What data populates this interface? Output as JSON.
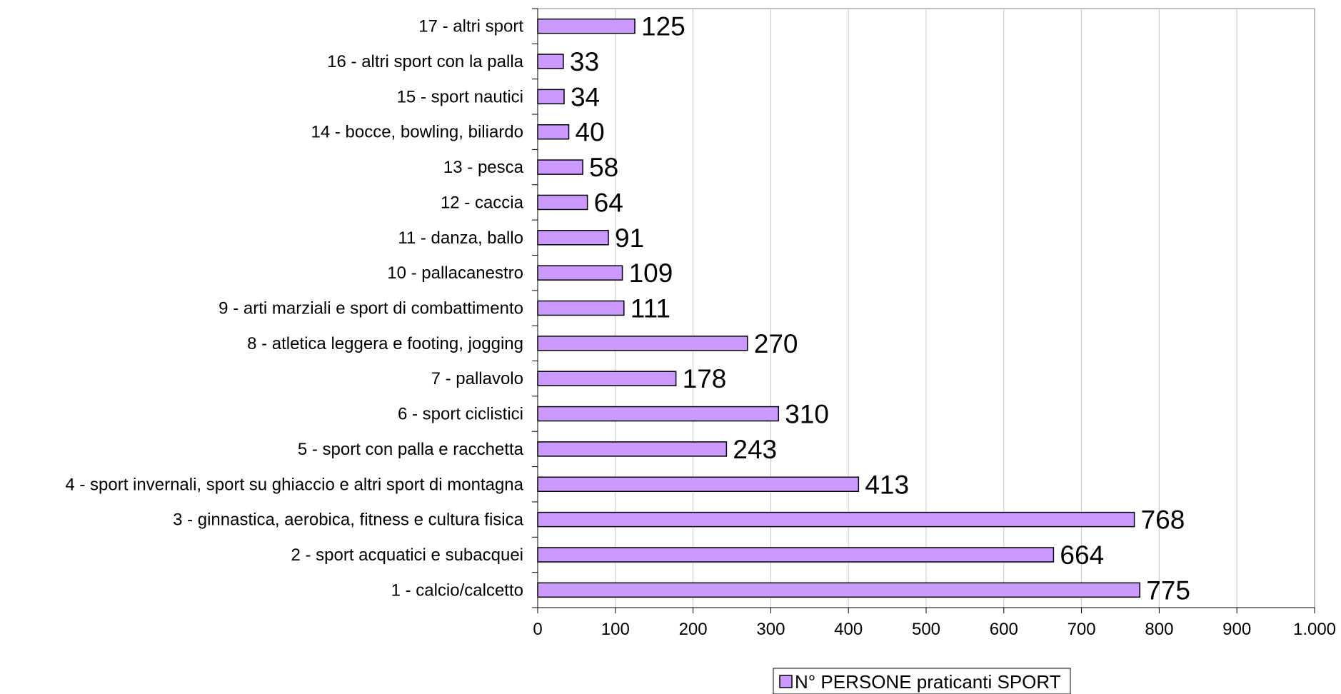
{
  "chart_data": {
    "type": "bar",
    "orientation": "horizontal",
    "categories": [
      "1 - calcio/calcetto",
      "2 - sport acquatici e subacquei",
      "3 - ginnastica, aerobica, fitness e cultura fisica",
      "4 - sport invernali, sport su ghiaccio e altri sport di montagna",
      "5 - sport con palla e racchetta",
      "6 - sport ciclistici",
      "7 - pallavolo",
      "8 - atletica leggera e footing, jogging",
      "9 - arti marziali e sport di combattimento",
      "10 - pallacanestro",
      "11 - danza, ballo",
      "12 - caccia",
      "13 - pesca",
      "14 - bocce, bowling, biliardo",
      "15 - sport nautici",
      "16 - altri sport con la palla",
      "17 - altri sport"
    ],
    "series": [
      {
        "name": "N° PERSONE praticanti SPORT",
        "values": [
          775,
          664,
          768,
          413,
          243,
          310,
          178,
          270,
          111,
          109,
          91,
          64,
          58,
          40,
          34,
          33,
          125
        ],
        "value_labels": [
          "775",
          "664",
          "768",
          "413",
          "243",
          "310",
          "178",
          "270",
          "111",
          "109",
          "91",
          "64",
          "58",
          "40",
          "34",
          "33",
          "125"
        ],
        "color": "#cc99ff"
      }
    ],
    "xlim": [
      0,
      1000
    ],
    "xticks": [
      0,
      100,
      200,
      300,
      400,
      500,
      600,
      700,
      800,
      900,
      1000
    ],
    "xtick_labels": [
      "0",
      "100",
      "200",
      "300",
      "400",
      "500",
      "600",
      "700",
      "800",
      "900",
      "1.000"
    ],
    "grid": "vertical",
    "legend_position": "bottom-center",
    "title": "",
    "xlabel": "",
    "ylabel": ""
  }
}
